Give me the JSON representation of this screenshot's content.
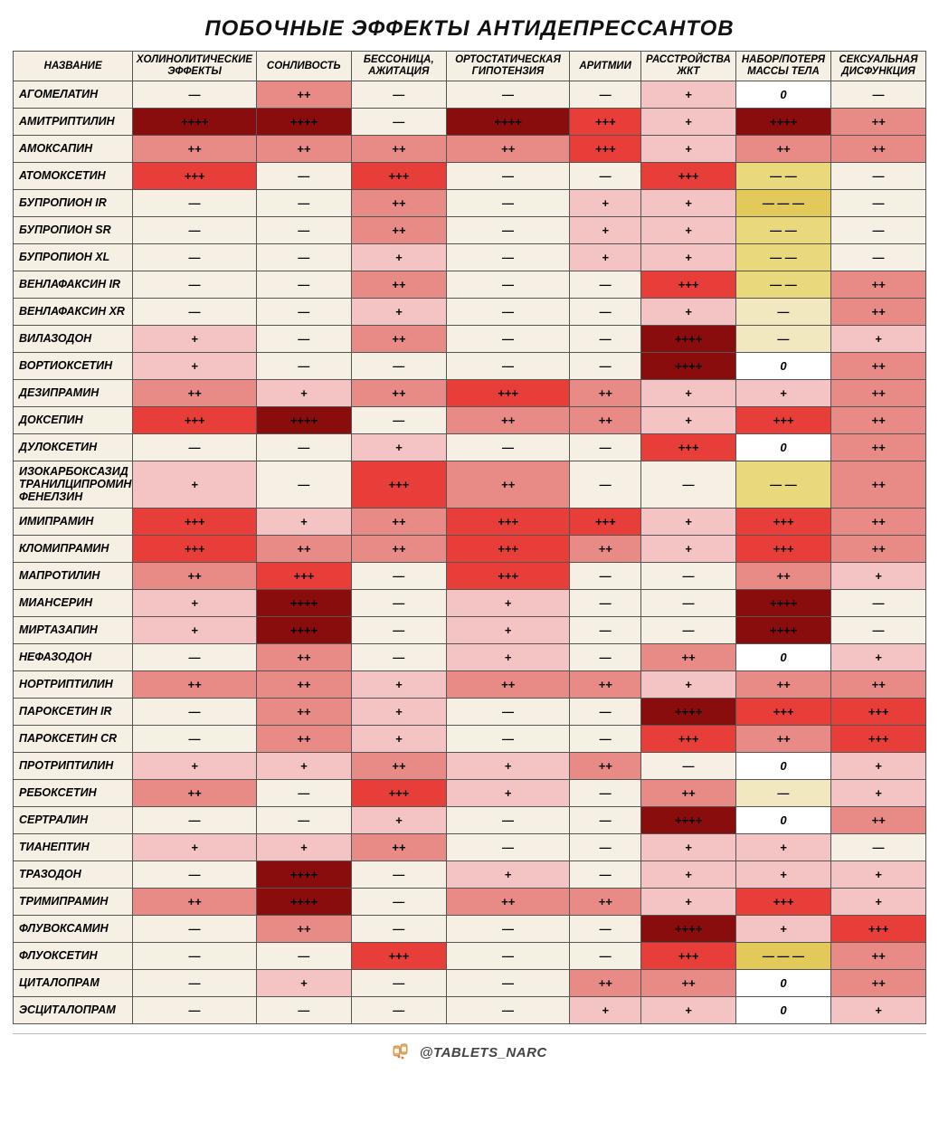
{
  "title": "ПОБОЧНЫЕ ЭФФЕКТЫ АНТИДЕПРЕССАНТОВ",
  "footer": "@TABLETS_NARC",
  "colors": {
    "lvl0": "#f6f0e4",
    "lvl1": "#f4c3c3",
    "lvl2": "#e88a86",
    "lvl3": "#e83e3a",
    "lvl4": "#8a0d0d",
    "zero": "#ffffff",
    "neg1": "#f2e8c0",
    "neg2": "#e9d87c",
    "neg3": "#e3c95a",
    "header": "#f6f0e4"
  },
  "symbols": {
    "dash": "—",
    "p1": "+",
    "p2": "++",
    "p3": "+++",
    "p4": "++++",
    "zero": "0",
    "m2": "— —",
    "m3": "— — —"
  },
  "columns": [
    "НАЗВАНИЕ",
    "ХОЛИНОЛИТИЧЕСКИЕ ЭФФЕКТЫ",
    "СОНЛИВОСТЬ",
    "БЕССОНИЦА, АЖИТАЦИЯ",
    "ОРТОСТАТИЧЕСКАЯ ГИПОТЕНЗИЯ",
    "АРИТМИИ",
    "РАССТРОЙСТВА ЖКТ",
    "НАБОР/ПОТЕРЯ МАССЫ ТЕЛА",
    "СЕКСУАЛЬНАЯ ДИСФУНКЦИЯ"
  ],
  "rows": [
    {
      "name": "АГОМЕЛАТИН",
      "cells": [
        [
          "—",
          "lvl0"
        ],
        [
          "++",
          "lvl2"
        ],
        [
          "—",
          "lvl0"
        ],
        [
          "—",
          "lvl0"
        ],
        [
          "—",
          "lvl0"
        ],
        [
          "+",
          "lvl1"
        ],
        [
          "0",
          "zero"
        ],
        [
          "—",
          "lvl0"
        ]
      ]
    },
    {
      "name": "АМИТРИПТИЛИН",
      "cells": [
        [
          "++++",
          "lvl4"
        ],
        [
          "++++",
          "lvl4"
        ],
        [
          "—",
          "lvl0"
        ],
        [
          "++++",
          "lvl4"
        ],
        [
          "+++",
          "lvl3"
        ],
        [
          "+",
          "lvl1"
        ],
        [
          "++++",
          "lvl4"
        ],
        [
          "++",
          "lvl2"
        ]
      ]
    },
    {
      "name": "АМОКСАПИН",
      "cells": [
        [
          "++",
          "lvl2"
        ],
        [
          "++",
          "lvl2"
        ],
        [
          "++",
          "lvl2"
        ],
        [
          "++",
          "lvl2"
        ],
        [
          "+++",
          "lvl3"
        ],
        [
          "+",
          "lvl1"
        ],
        [
          "++",
          "lvl2"
        ],
        [
          "++",
          "lvl2"
        ]
      ]
    },
    {
      "name": "АТОМОКСЕТИН",
      "cells": [
        [
          "+++",
          "lvl3"
        ],
        [
          "—",
          "lvl0"
        ],
        [
          "+++",
          "lvl3"
        ],
        [
          "—",
          "lvl0"
        ],
        [
          "—",
          "lvl0"
        ],
        [
          "+++",
          "lvl3"
        ],
        [
          "— —",
          "neg2"
        ],
        [
          "—",
          "lvl0"
        ]
      ]
    },
    {
      "name": "БУПРОПИОН IR",
      "cells": [
        [
          "—",
          "lvl0"
        ],
        [
          "—",
          "lvl0"
        ],
        [
          "++",
          "lvl2"
        ],
        [
          "—",
          "lvl0"
        ],
        [
          "+",
          "lvl1"
        ],
        [
          "+",
          "lvl1"
        ],
        [
          "— — —",
          "neg3"
        ],
        [
          "—",
          "lvl0"
        ]
      ]
    },
    {
      "name": "БУПРОПИОН SR",
      "cells": [
        [
          "—",
          "lvl0"
        ],
        [
          "—",
          "lvl0"
        ],
        [
          "++",
          "lvl2"
        ],
        [
          "—",
          "lvl0"
        ],
        [
          "+",
          "lvl1"
        ],
        [
          "+",
          "lvl1"
        ],
        [
          "— —",
          "neg2"
        ],
        [
          "—",
          "lvl0"
        ]
      ]
    },
    {
      "name": "БУПРОПИОН XL",
      "cells": [
        [
          "—",
          "lvl0"
        ],
        [
          "—",
          "lvl0"
        ],
        [
          "+",
          "lvl1"
        ],
        [
          "—",
          "lvl0"
        ],
        [
          "+",
          "lvl1"
        ],
        [
          "+",
          "lvl1"
        ],
        [
          "— —",
          "neg2"
        ],
        [
          "—",
          "lvl0"
        ]
      ]
    },
    {
      "name": "ВЕНЛАФАКСИН IR",
      "cells": [
        [
          "—",
          "lvl0"
        ],
        [
          "—",
          "lvl0"
        ],
        [
          "++",
          "lvl2"
        ],
        [
          "—",
          "lvl0"
        ],
        [
          "—",
          "lvl0"
        ],
        [
          "+++",
          "lvl3"
        ],
        [
          "— —",
          "neg2"
        ],
        [
          "++",
          "lvl2"
        ]
      ]
    },
    {
      "name": "ВЕНЛАФАКСИН XR",
      "cells": [
        [
          "—",
          "lvl0"
        ],
        [
          "—",
          "lvl0"
        ],
        [
          "+",
          "lvl1"
        ],
        [
          "—",
          "lvl0"
        ],
        [
          "—",
          "lvl0"
        ],
        [
          "+",
          "lvl1"
        ],
        [
          "—",
          "neg1"
        ],
        [
          "++",
          "lvl2"
        ]
      ]
    },
    {
      "name": "ВИЛАЗОДОН",
      "cells": [
        [
          "+",
          "lvl1"
        ],
        [
          "—",
          "lvl0"
        ],
        [
          "++",
          "lvl2"
        ],
        [
          "—",
          "lvl0"
        ],
        [
          "—",
          "lvl0"
        ],
        [
          "++++",
          "lvl4"
        ],
        [
          "—",
          "neg1"
        ],
        [
          "+",
          "lvl1"
        ]
      ]
    },
    {
      "name": "ВОРТИОКСЕТИН",
      "cells": [
        [
          "+",
          "lvl1"
        ],
        [
          "—",
          "lvl0"
        ],
        [
          "—",
          "lvl0"
        ],
        [
          "—",
          "lvl0"
        ],
        [
          "—",
          "lvl0"
        ],
        [
          "++++",
          "lvl4"
        ],
        [
          "0",
          "zero"
        ],
        [
          "++",
          "lvl2"
        ]
      ]
    },
    {
      "name": "ДЕЗИПРАМИН",
      "cells": [
        [
          "++",
          "lvl2"
        ],
        [
          "+",
          "lvl1"
        ],
        [
          "++",
          "lvl2"
        ],
        [
          "+++",
          "lvl3"
        ],
        [
          "++",
          "lvl2"
        ],
        [
          "+",
          "lvl1"
        ],
        [
          "+",
          "lvl1"
        ],
        [
          "++",
          "lvl2"
        ]
      ]
    },
    {
      "name": "ДОКСЕПИН",
      "cells": [
        [
          "+++",
          "lvl3"
        ],
        [
          "++++",
          "lvl4"
        ],
        [
          "—",
          "lvl0"
        ],
        [
          "++",
          "lvl2"
        ],
        [
          "++",
          "lvl2"
        ],
        [
          "+",
          "lvl1"
        ],
        [
          "+++",
          "lvl3"
        ],
        [
          "++",
          "lvl2"
        ]
      ]
    },
    {
      "name": "ДУЛОКСЕТИН",
      "cells": [
        [
          "—",
          "lvl0"
        ],
        [
          "—",
          "lvl0"
        ],
        [
          "+",
          "lvl1"
        ],
        [
          "—",
          "lvl0"
        ],
        [
          "—",
          "lvl0"
        ],
        [
          "+++",
          "lvl3"
        ],
        [
          "0",
          "zero"
        ],
        [
          "++",
          "lvl2"
        ]
      ]
    },
    {
      "name": "ИЗОКАРБОКСАЗИД ТРАНИЛЦИПРОМИН ФЕНЕЛЗИН",
      "tall": true,
      "cells": [
        [
          "+",
          "lvl1"
        ],
        [
          "—",
          "lvl0"
        ],
        [
          "+++",
          "lvl3"
        ],
        [
          "++",
          "lvl2"
        ],
        [
          "—",
          "lvl0"
        ],
        [
          "—",
          "lvl0"
        ],
        [
          "— —",
          "neg2"
        ],
        [
          "++",
          "lvl2"
        ]
      ]
    },
    {
      "name": "ИМИПРАМИН",
      "cells": [
        [
          "+++",
          "lvl3"
        ],
        [
          "+",
          "lvl1"
        ],
        [
          "++",
          "lvl2"
        ],
        [
          "+++",
          "lvl3"
        ],
        [
          "+++",
          "lvl3"
        ],
        [
          "+",
          "lvl1"
        ],
        [
          "+++",
          "lvl3"
        ],
        [
          "++",
          "lvl2"
        ]
      ]
    },
    {
      "name": "КЛОМИПРАМИН",
      "cells": [
        [
          "+++",
          "lvl3"
        ],
        [
          "++",
          "lvl2"
        ],
        [
          "++",
          "lvl2"
        ],
        [
          "+++",
          "lvl3"
        ],
        [
          "++",
          "lvl2"
        ],
        [
          "+",
          "lvl1"
        ],
        [
          "+++",
          "lvl3"
        ],
        [
          "++",
          "lvl2"
        ]
      ]
    },
    {
      "name": "МАПРОТИЛИН",
      "cells": [
        [
          "++",
          "lvl2"
        ],
        [
          "+++",
          "lvl3"
        ],
        [
          "—",
          "lvl0"
        ],
        [
          "+++",
          "lvl3"
        ],
        [
          "—",
          "lvl0"
        ],
        [
          "—",
          "lvl0"
        ],
        [
          "++",
          "lvl2"
        ],
        [
          "+",
          "lvl1"
        ]
      ]
    },
    {
      "name": "МИАНСЕРИН",
      "cells": [
        [
          "+",
          "lvl1"
        ],
        [
          "++++",
          "lvl4"
        ],
        [
          "—",
          "lvl0"
        ],
        [
          "+",
          "lvl1"
        ],
        [
          "—",
          "lvl0"
        ],
        [
          "—",
          "lvl0"
        ],
        [
          "++++",
          "lvl4"
        ],
        [
          "—",
          "lvl0"
        ]
      ]
    },
    {
      "name": "МИРТАЗАПИН",
      "cells": [
        [
          "+",
          "lvl1"
        ],
        [
          "++++",
          "lvl4"
        ],
        [
          "—",
          "lvl0"
        ],
        [
          "+",
          "lvl1"
        ],
        [
          "—",
          "lvl0"
        ],
        [
          "—",
          "lvl0"
        ],
        [
          "++++",
          "lvl4"
        ],
        [
          "—",
          "lvl0"
        ]
      ]
    },
    {
      "name": "НЕФАЗОДОН",
      "cells": [
        [
          "—",
          "lvl0"
        ],
        [
          "++",
          "lvl2"
        ],
        [
          "—",
          "lvl0"
        ],
        [
          "+",
          "lvl1"
        ],
        [
          "—",
          "lvl0"
        ],
        [
          "++",
          "lvl2"
        ],
        [
          "0",
          "zero"
        ],
        [
          "+",
          "lvl1"
        ]
      ]
    },
    {
      "name": "НОРТРИПТИЛИН",
      "cells": [
        [
          "++",
          "lvl2"
        ],
        [
          "++",
          "lvl2"
        ],
        [
          "+",
          "lvl1"
        ],
        [
          "++",
          "lvl2"
        ],
        [
          "++",
          "lvl2"
        ],
        [
          "+",
          "lvl1"
        ],
        [
          "++",
          "lvl2"
        ],
        [
          "++",
          "lvl2"
        ]
      ]
    },
    {
      "name": "ПАРОКСЕТИН IR",
      "cells": [
        [
          "—",
          "lvl0"
        ],
        [
          "++",
          "lvl2"
        ],
        [
          "+",
          "lvl1"
        ],
        [
          "—",
          "lvl0"
        ],
        [
          "—",
          "lvl0"
        ],
        [
          "++++",
          "lvl4"
        ],
        [
          "+++",
          "lvl3"
        ],
        [
          "+++",
          "lvl3"
        ]
      ]
    },
    {
      "name": "ПАРОКСЕТИН CR",
      "cells": [
        [
          "—",
          "lvl0"
        ],
        [
          "++",
          "lvl2"
        ],
        [
          "+",
          "lvl1"
        ],
        [
          "—",
          "lvl0"
        ],
        [
          "—",
          "lvl0"
        ],
        [
          "+++",
          "lvl3"
        ],
        [
          "++",
          "lvl2"
        ],
        [
          "+++",
          "lvl3"
        ]
      ]
    },
    {
      "name": "ПРОТРИПТИЛИН",
      "cells": [
        [
          "+",
          "lvl1"
        ],
        [
          "+",
          "lvl1"
        ],
        [
          "++",
          "lvl2"
        ],
        [
          "+",
          "lvl1"
        ],
        [
          "++",
          "lvl2"
        ],
        [
          "—",
          "lvl0"
        ],
        [
          "0",
          "zero"
        ],
        [
          "+",
          "lvl1"
        ]
      ]
    },
    {
      "name": "РЕБОКСЕТИН",
      "cells": [
        [
          "++",
          "lvl2"
        ],
        [
          "—",
          "lvl0"
        ],
        [
          "+++",
          "lvl3"
        ],
        [
          "+",
          "lvl1"
        ],
        [
          "—",
          "lvl0"
        ],
        [
          "++",
          "lvl2"
        ],
        [
          "—",
          "neg1"
        ],
        [
          "+",
          "lvl1"
        ]
      ]
    },
    {
      "name": "СЕРТРАЛИН",
      "cells": [
        [
          "—",
          "lvl0"
        ],
        [
          "—",
          "lvl0"
        ],
        [
          "+",
          "lvl1"
        ],
        [
          "—",
          "lvl0"
        ],
        [
          "—",
          "lvl0"
        ],
        [
          "++++",
          "lvl4"
        ],
        [
          "0",
          "zero"
        ],
        [
          "++",
          "lvl2"
        ]
      ]
    },
    {
      "name": "ТИАНЕПТИН",
      "cells": [
        [
          "+",
          "lvl1"
        ],
        [
          "+",
          "lvl1"
        ],
        [
          "++",
          "lvl2"
        ],
        [
          "—",
          "lvl0"
        ],
        [
          "—",
          "lvl0"
        ],
        [
          "+",
          "lvl1"
        ],
        [
          "+",
          "lvl1"
        ],
        [
          "—",
          "lvl0"
        ]
      ]
    },
    {
      "name": "ТРАЗОДОН",
      "cells": [
        [
          "—",
          "lvl0"
        ],
        [
          "++++",
          "lvl4"
        ],
        [
          "—",
          "lvl0"
        ],
        [
          "+",
          "lvl1"
        ],
        [
          "—",
          "lvl0"
        ],
        [
          "+",
          "lvl1"
        ],
        [
          "+",
          "lvl1"
        ],
        [
          "+",
          "lvl1"
        ]
      ]
    },
    {
      "name": "ТРИМИПРАМИН",
      "cells": [
        [
          "++",
          "lvl2"
        ],
        [
          "++++",
          "lvl4"
        ],
        [
          "—",
          "lvl0"
        ],
        [
          "++",
          "lvl2"
        ],
        [
          "++",
          "lvl2"
        ],
        [
          "+",
          "lvl1"
        ],
        [
          "+++",
          "lvl3"
        ],
        [
          "+",
          "lvl1"
        ]
      ]
    },
    {
      "name": "ФЛУВОКСАМИН",
      "cells": [
        [
          "—",
          "lvl0"
        ],
        [
          "++",
          "lvl2"
        ],
        [
          "—",
          "lvl0"
        ],
        [
          "—",
          "lvl0"
        ],
        [
          "—",
          "lvl0"
        ],
        [
          "++++",
          "lvl4"
        ],
        [
          "+",
          "lvl1"
        ],
        [
          "+++",
          "lvl3"
        ]
      ]
    },
    {
      "name": "ФЛУОКСЕТИН",
      "cells": [
        [
          "—",
          "lvl0"
        ],
        [
          "—",
          "lvl0"
        ],
        [
          "+++",
          "lvl3"
        ],
        [
          "—",
          "lvl0"
        ],
        [
          "—",
          "lvl0"
        ],
        [
          "+++",
          "lvl3"
        ],
        [
          "— — —",
          "neg3"
        ],
        [
          "++",
          "lvl2"
        ]
      ]
    },
    {
      "name": "ЦИТАЛОПРАМ",
      "cells": [
        [
          "—",
          "lvl0"
        ],
        [
          "+",
          "lvl1"
        ],
        [
          "—",
          "lvl0"
        ],
        [
          "—",
          "lvl0"
        ],
        [
          "++",
          "lvl2"
        ],
        [
          "++",
          "lvl2"
        ],
        [
          "0",
          "zero"
        ],
        [
          "++",
          "lvl2"
        ]
      ]
    },
    {
      "name": "ЭСЦИТАЛОПРАМ",
      "cells": [
        [
          "—",
          "lvl0"
        ],
        [
          "—",
          "lvl0"
        ],
        [
          "—",
          "lvl0"
        ],
        [
          "—",
          "lvl0"
        ],
        [
          "+",
          "lvl1"
        ],
        [
          "+",
          "lvl1"
        ],
        [
          "0",
          "zero"
        ],
        [
          "+",
          "lvl1"
        ]
      ]
    }
  ]
}
